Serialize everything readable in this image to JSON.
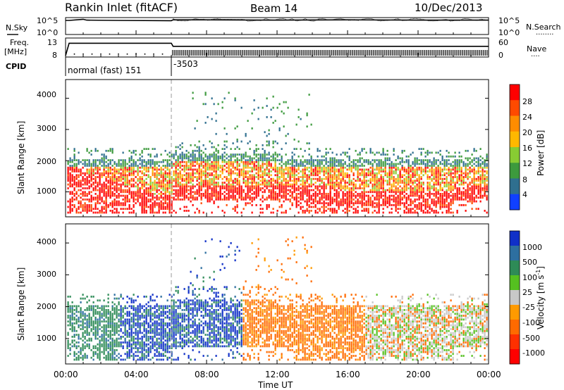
{
  "header": {
    "station": "Rankin Inlet (fitACF)",
    "beam": "Beam 14",
    "date": "10/Dec/2013"
  },
  "chart_data": [
    {
      "type": "line",
      "panel": "noise",
      "left_label": "N.Sky",
      "right_label": "N.Search",
      "right_label_dots": "........",
      "yticks_left": [
        "10^5",
        "10^0"
      ],
      "yticks_right": [
        "10^5",
        "10^0"
      ],
      "x": [
        0,
        0.2,
        1,
        1.2,
        3,
        6,
        6.1,
        8,
        12,
        16,
        20,
        24
      ],
      "values": [
        4.5,
        4.5,
        4.9,
        4.6,
        4.5,
        4.4,
        4.7,
        4.7,
        4.6,
        4.7,
        4.6,
        4.6
      ]
    },
    {
      "type": "line",
      "panel": "frequency",
      "left_label_1": "Freq.",
      "left_label_2": "[MHz]",
      "right_label": "Nave",
      "right_label_dots": "....",
      "yticks_left": [
        "13",
        "8"
      ],
      "yticks_right": [
        "60",
        "0"
      ],
      "cpid_label": "CPID",
      "cpid_segments": [
        {
          "start": 0,
          "end": 6,
          "label": "normal (fast) 151"
        },
        {
          "start": 6,
          "end": 24,
          "label": "-3503"
        }
      ],
      "x": [
        0,
        0.2,
        6,
        6.1,
        24
      ],
      "values": [
        8,
        12,
        12,
        11,
        11
      ]
    },
    {
      "type": "heatmap",
      "panel": "power",
      "ylabel": "Slant Range [km]",
      "yticks": [
        "4000",
        "3000",
        "2000",
        "1000"
      ],
      "ylim": [
        200,
        4600
      ],
      "colorbar_label": "Power [dB]",
      "colorbar_ticks": [
        "28",
        "24",
        "20",
        "16",
        "12",
        "8",
        "4"
      ],
      "colorbar_colors": [
        "#ff0000",
        "#ff4a00",
        "#ff8c00",
        "#ffb800",
        "#88cc33",
        "#3d9a3d",
        "#2f6f8f",
        "#1040ff"
      ]
    },
    {
      "type": "heatmap",
      "panel": "velocity",
      "ylabel": "Slant Range [km]",
      "yticks": [
        "4000",
        "3000",
        "2000",
        "1000"
      ],
      "ylim": [
        200,
        4600
      ],
      "colorbar_label": "Velocity [m s",
      "colorbar_label_sup": "-1",
      "colorbar_label_end": "]",
      "colorbar_ticks": [
        "1000",
        "500",
        "100",
        "25",
        "-25",
        "-100",
        "-500",
        "-1000"
      ],
      "colorbar_colors": [
        "#1030c8",
        "#2d6fa0",
        "#2e8b57",
        "#55c020",
        "#c8c8c8",
        "#ff9a00",
        "#ff6a00",
        "#ff3000",
        "#ff0000"
      ]
    }
  ],
  "x_axis": {
    "ticks": [
      "00:00",
      "04:00",
      "08:00",
      "12:00",
      "16:00",
      "20:00",
      "00:00"
    ],
    "label": "Time UT",
    "xlim": [
      0,
      24
    ]
  }
}
